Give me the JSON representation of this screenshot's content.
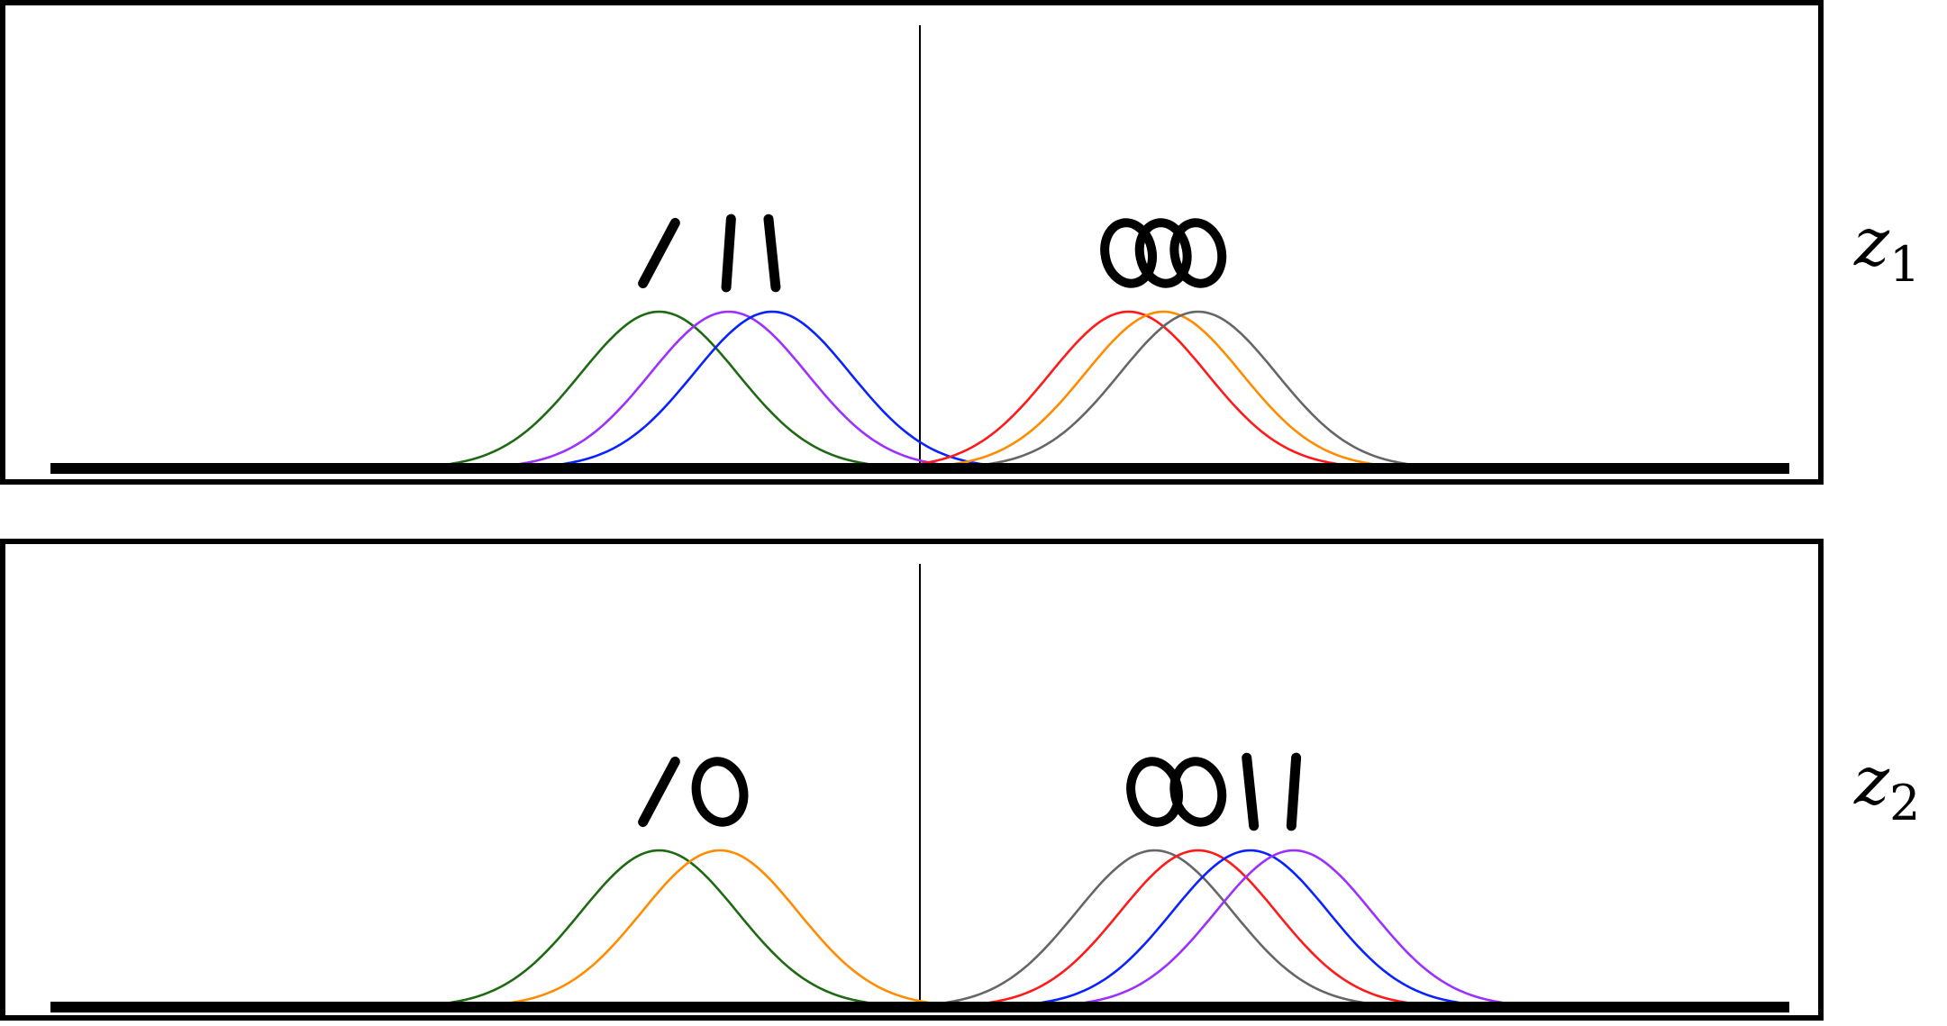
{
  "panels": [
    {
      "label_var": "z",
      "label_sub": "1",
      "divider_x": 0,
      "x_range": [
        -5,
        5
      ],
      "curves": [
        {
          "color": "#1e6a12",
          "mean": -1.5,
          "sd": 0.45,
          "digit": "1",
          "digit_slant": 28
        },
        {
          "color": "#9b30ff",
          "mean": -1.1,
          "sd": 0.45,
          "digit": "1",
          "digit_slant": 4
        },
        {
          "color": "#0a22ff",
          "mean": -0.85,
          "sd": 0.45,
          "digit": "1",
          "digit_slant": -6
        },
        {
          "color": "#ff1a1a",
          "mean": 1.2,
          "sd": 0.45,
          "digit": "0",
          "digit_slant": 0
        },
        {
          "color": "#ff8c00",
          "mean": 1.4,
          "sd": 0.45,
          "digit": "0",
          "digit_slant": 0
        },
        {
          "color": "#666666",
          "mean": 1.6,
          "sd": 0.45,
          "digit": "0",
          "digit_slant": 0
        }
      ]
    },
    {
      "label_var": "z",
      "label_sub": "2",
      "divider_x": 0,
      "x_range": [
        -5,
        5
      ],
      "curves": [
        {
          "color": "#1e6a12",
          "mean": -1.5,
          "sd": 0.45,
          "digit": "1",
          "digit_slant": 28
        },
        {
          "color": "#ff8c00",
          "mean": -1.15,
          "sd": 0.45,
          "digit": "0",
          "digit_slant": 0
        },
        {
          "color": "#666666",
          "mean": 1.35,
          "sd": 0.45,
          "digit": "0",
          "digit_slant": 0
        },
        {
          "color": "#ff1a1a",
          "mean": 1.6,
          "sd": 0.45,
          "digit": "0",
          "digit_slant": 0
        },
        {
          "color": "#0a22ff",
          "mean": 1.9,
          "sd": 0.45,
          "digit": "1",
          "digit_slant": -6
        },
        {
          "color": "#9b30ff",
          "mean": 2.15,
          "sd": 0.45,
          "digit": "1",
          "digit_slant": 4
        }
      ]
    }
  ]
}
